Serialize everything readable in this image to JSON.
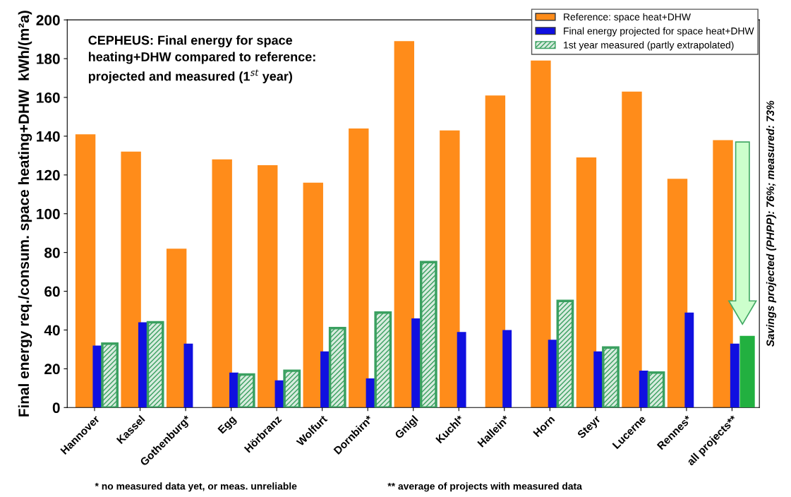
{
  "chart_data": {
    "type": "bar",
    "title": "CEPHEUS: Final energy for space\nheating+DHW compared to reference:\nprojected and measured (1$^{st}$ year)",
    "ylabel": "Final energy req./consum. space heating+DHW  kWh/(m²a)",
    "categories": [
      "Hannover",
      "Kassel",
      "Gothenburg*",
      "Egg",
      "Hörbranz",
      "Wolfurt",
      "Dornbirn*",
      "Gnigl",
      "Kuchl*",
      "Hallein*",
      "Horn",
      "Steyr",
      "Lucerne",
      "Rennes*",
      "all projects**"
    ],
    "series": [
      {
        "name": "Reference: space heat+DHW",
        "color": "#ff8c1a",
        "values": [
          141,
          132,
          82,
          128,
          125,
          116,
          144,
          189,
          143,
          161,
          179,
          129,
          163,
          118,
          138
        ]
      },
      {
        "name": "Final energy projected for space heat+DHW",
        "color": "#1010e0",
        "values": [
          32,
          44,
          33,
          18,
          14,
          29,
          15,
          46,
          39,
          40,
          35,
          29,
          19,
          49,
          33
        ]
      },
      {
        "name": "1st year measured (partly extrapolated)",
        "color": "#3aa060",
        "colors": [
          "#3aa060",
          "#3aa060",
          "#3aa060",
          "#3aa060",
          "#3aa060",
          "#3aa060",
          "#3aa060",
          "#3aa060",
          "#3aa060",
          "#3aa060",
          "#3aa060",
          "#3aa060",
          "#3aa060",
          "#3aa060",
          "#22b040"
        ],
        "values": [
          33,
          44,
          null,
          17,
          19,
          41,
          49,
          75,
          null,
          null,
          55,
          31,
          18,
          null,
          37
        ]
      }
    ],
    "ylim": [
      0,
      200
    ],
    "yticks": [
      0,
      20,
      40,
      60,
      80,
      100,
      120,
      140,
      160,
      180,
      200
    ],
    "grid": false,
    "legend": "top right",
    "annotations": [
      "* no measured data yet, or meas. unreliable",
      "** average of projects with measured data",
      "Savings projected (PHPP): 76%; measured: 73%"
    ]
  }
}
